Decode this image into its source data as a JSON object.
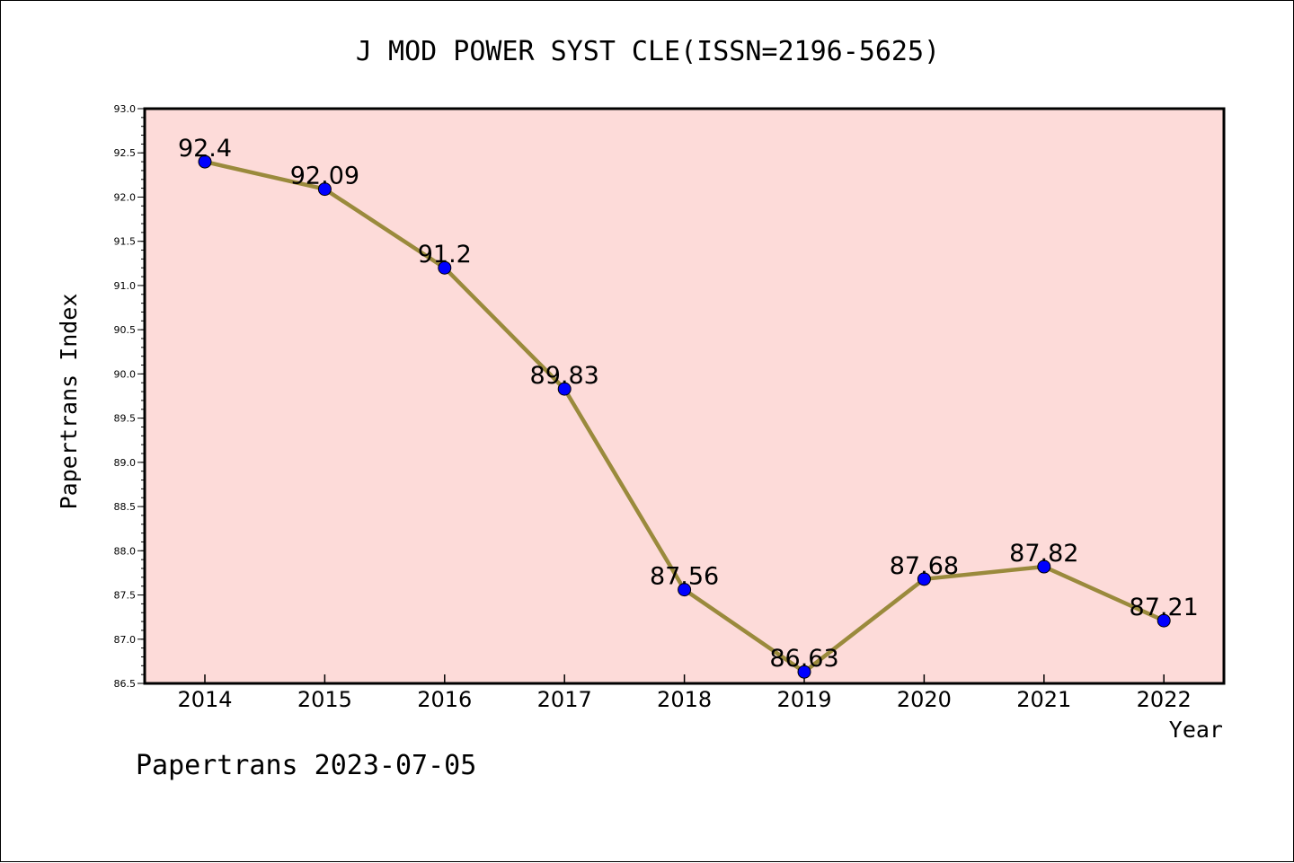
{
  "chart_data": {
    "type": "line",
    "title": "J MOD POWER SYST CLE(ISSN=2196-5625)",
    "xlabel": "Year",
    "ylabel": "Papertrans Index",
    "categories": [
      "2014",
      "2015",
      "2016",
      "2017",
      "2018",
      "2019",
      "2020",
      "2021",
      "2022"
    ],
    "series": [
      {
        "name": "Papertrans Index",
        "values": [
          92.4,
          92.09,
          91.2,
          89.83,
          87.56,
          86.63,
          87.68,
          87.82,
          87.21
        ],
        "labels": [
          "92.4",
          "92.09",
          "91.2",
          "89.83",
          "87.56",
          "86.63",
          "87.68",
          "87.82",
          "87.21"
        ]
      }
    ],
    "ylim": [
      86.5,
      93.0
    ],
    "yticks": [
      86.5,
      87.0,
      87.5,
      88.0,
      88.5,
      89.0,
      89.5,
      90.0,
      90.5,
      91.0,
      91.5,
      92.0,
      92.5,
      93.0
    ],
    "ytick_labels": [
      "86.5",
      "87.0",
      "87.5",
      "88.0",
      "88.5",
      "89.0",
      "89.5",
      "90.0",
      "90.5",
      "91.0",
      "91.5",
      "92.0",
      "92.5",
      "93.0"
    ],
    "grid": false,
    "legend": "none"
  },
  "footer": {
    "text": "Papertrans 2023-07-05"
  },
  "colors": {
    "plot_background": "#fddbd9",
    "line": "#9a8a3c",
    "marker": "#0000ff",
    "axis": "#000000"
  }
}
